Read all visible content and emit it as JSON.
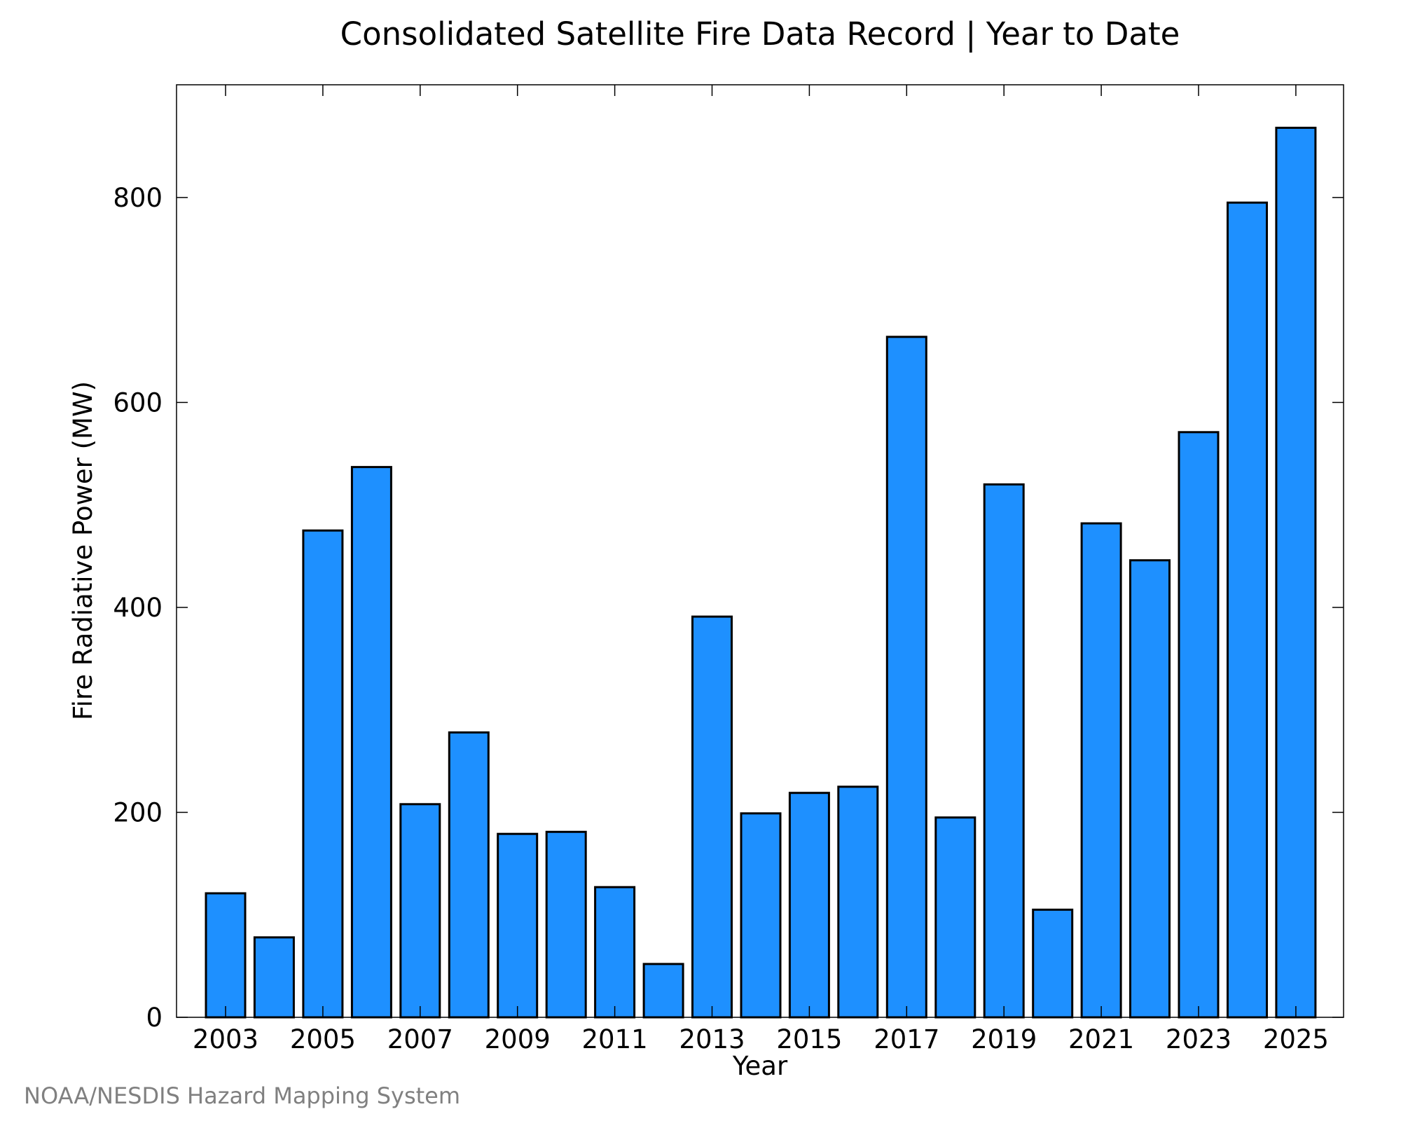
{
  "chart_data": {
    "type": "bar",
    "title": "Consolidated Satellite Fire Data Record | Year to Date",
    "xlabel": "Year",
    "ylabel": "Fire Radiative Power (MW)",
    "categories": [
      "2003",
      "2004",
      "2005",
      "2006",
      "2007",
      "2008",
      "2009",
      "2010",
      "2011",
      "2012",
      "2013",
      "2014",
      "2015",
      "2016",
      "2017",
      "2018",
      "2019",
      "2020",
      "2021",
      "2022",
      "2023",
      "2024",
      "2025"
    ],
    "values": [
      121,
      78,
      475,
      537,
      208,
      278,
      179,
      181,
      127,
      52,
      391,
      199,
      219,
      225,
      664,
      195,
      520,
      105,
      482,
      446,
      571,
      795,
      868
    ],
    "x_tick_labels": [
      "2003",
      "2005",
      "2007",
      "2009",
      "2011",
      "2013",
      "2015",
      "2017",
      "2019",
      "2021",
      "2023",
      "2025"
    ],
    "y_ticks": [
      0,
      200,
      400,
      600,
      800
    ],
    "ylim": [
      0,
      910
    ],
    "grid": false,
    "bar_color": "#1e90ff",
    "bar_edge_color": "#000000"
  },
  "credit": "NOAA/NESDIS Hazard Mapping System"
}
